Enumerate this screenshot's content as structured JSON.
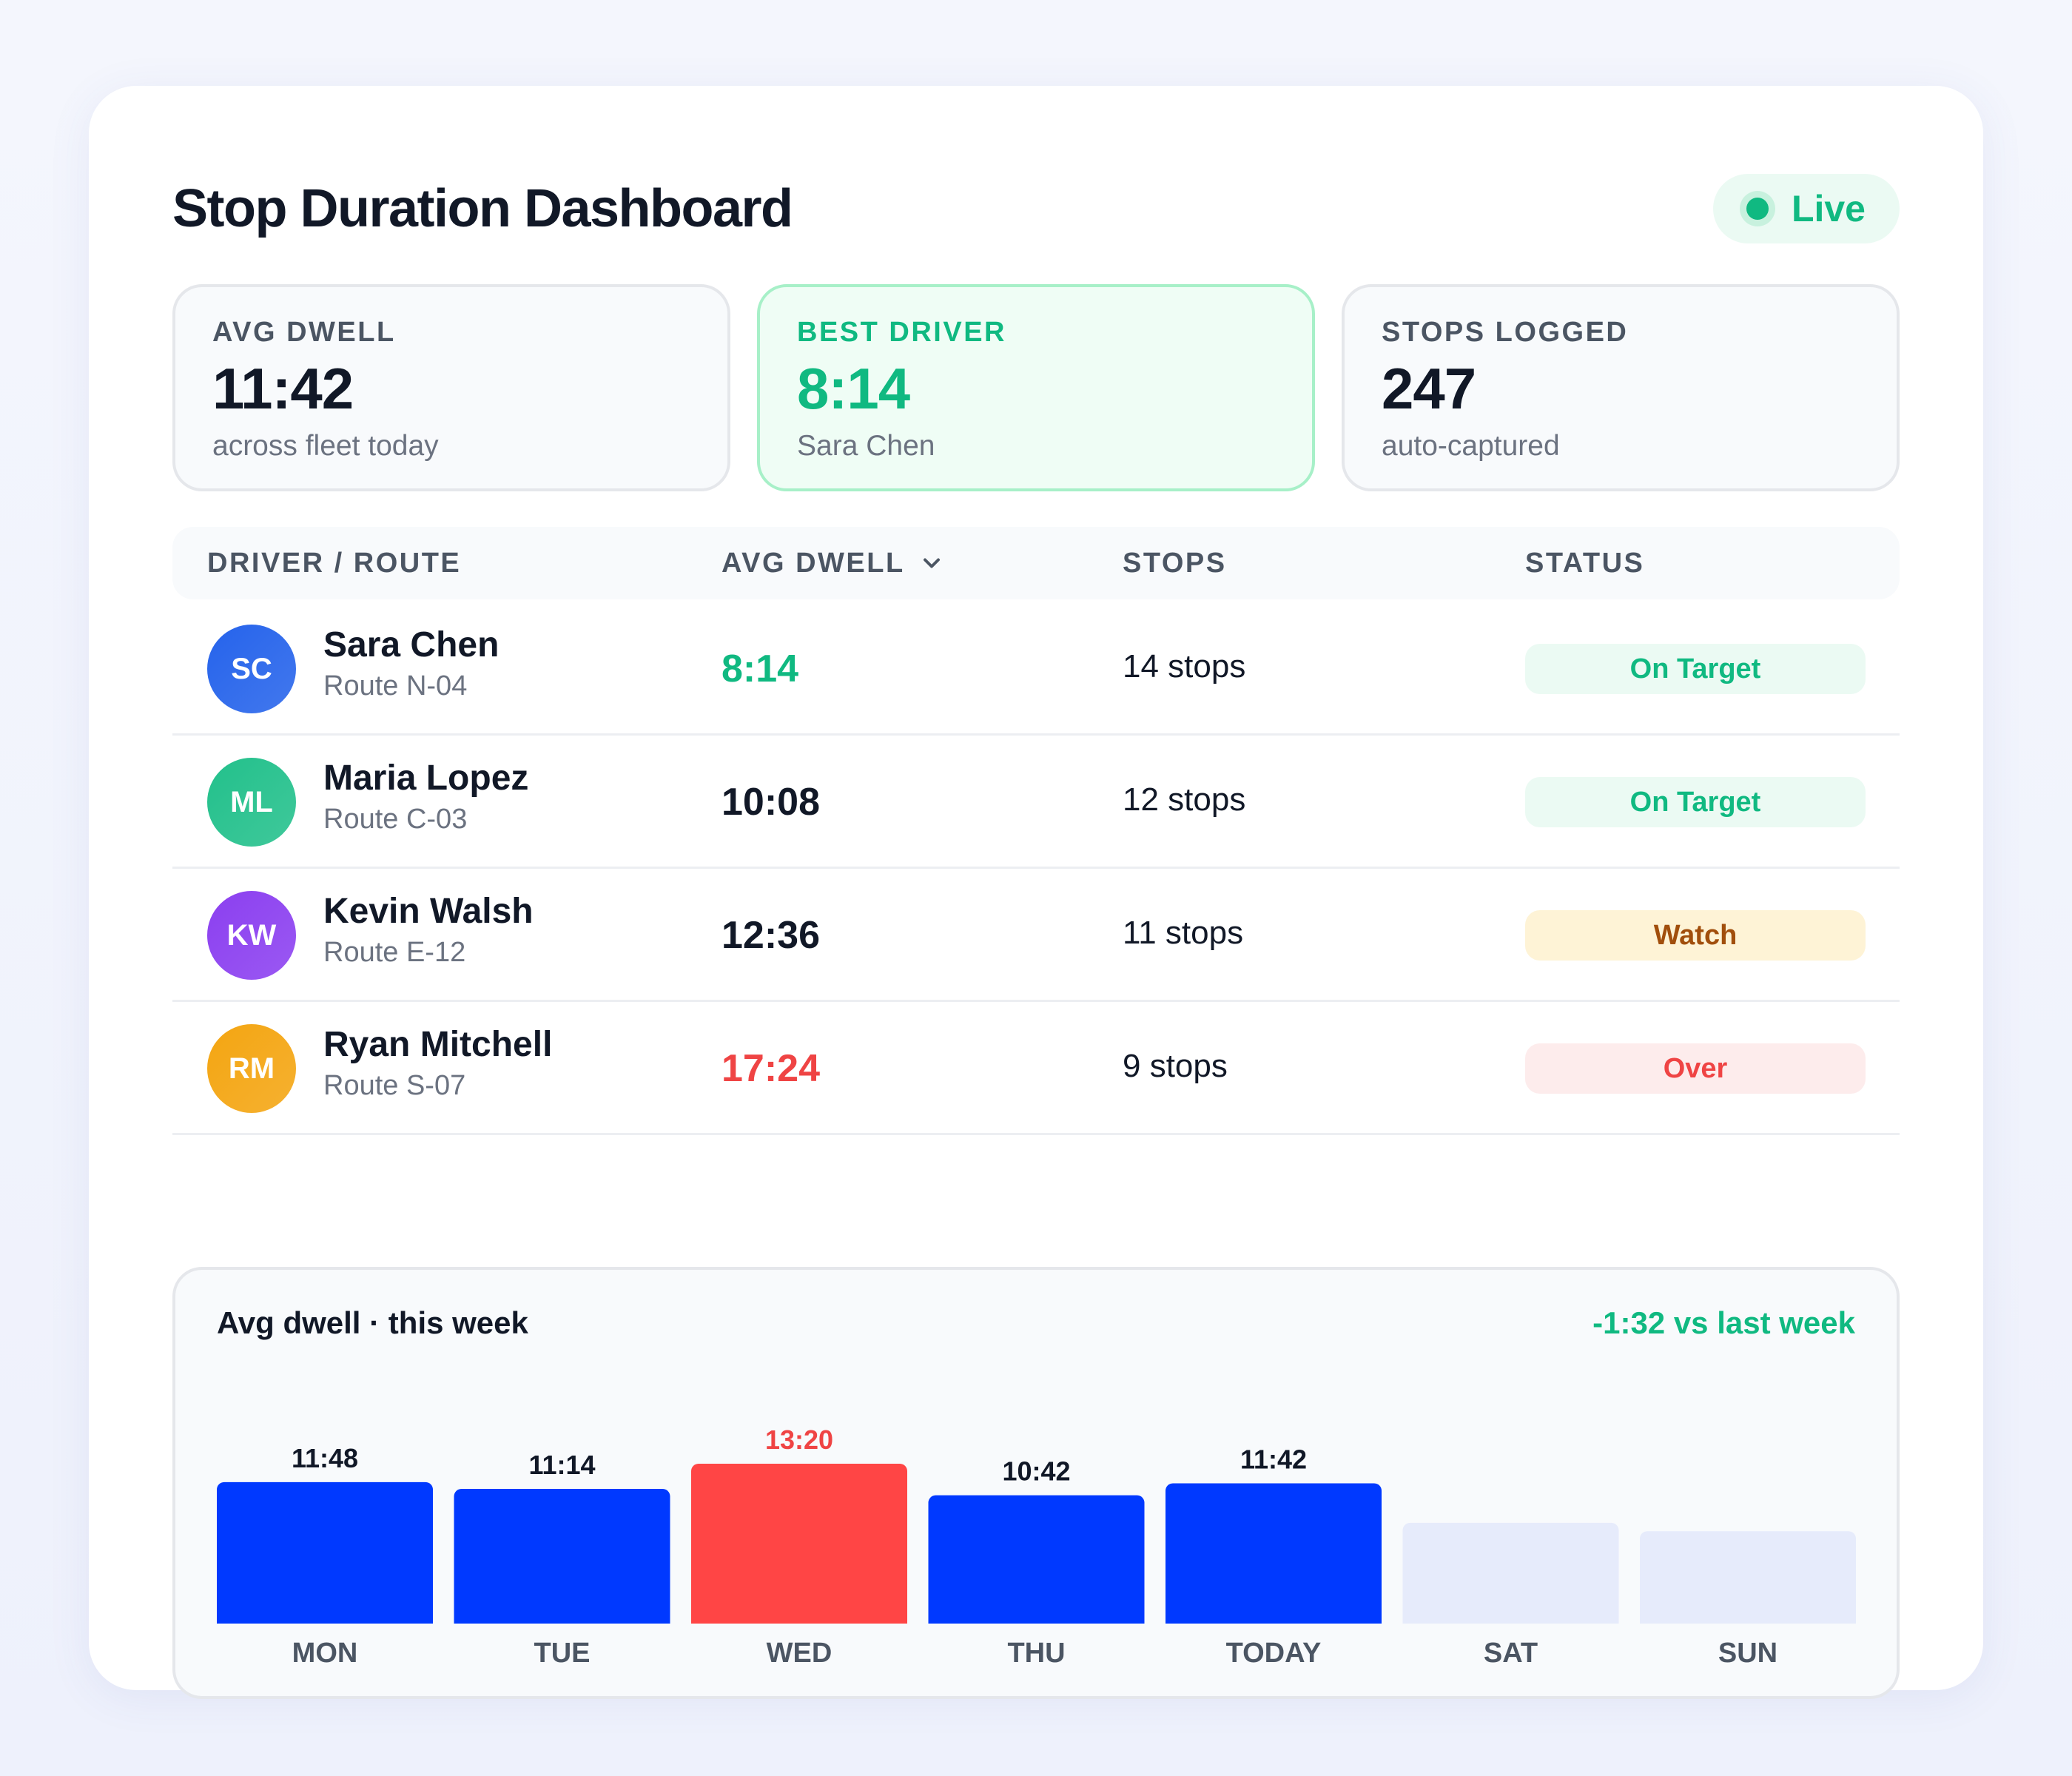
{
  "header": {
    "title": "Stop Duration Dashboard",
    "live_label": "Live"
  },
  "kpis": [
    {
      "label": "AVG DWELL",
      "value": "11:42",
      "sub": "across fleet today"
    },
    {
      "label": "BEST DRIVER",
      "value": "8:14",
      "sub": "Sara Chen"
    },
    {
      "label": "STOPS LOGGED",
      "value": "247",
      "sub": "auto-captured"
    }
  ],
  "table": {
    "headers": {
      "driver": "DRIVER / ROUTE",
      "dwell": "AVG DWELL",
      "stops": "STOPS",
      "status": "STATUS"
    },
    "rows": [
      {
        "initials": "SC",
        "name": "Sara Chen",
        "route": "Route N-04",
        "dwell": "8:14",
        "stops": "14 stops",
        "status": "On Target",
        "avatar_color": "#2563eb",
        "dwell_color": "#10b981",
        "badge_bg": "#ebfaf3",
        "badge_fg": "#10b981"
      },
      {
        "initials": "ML",
        "name": "Maria Lopez",
        "route": "Route C-03",
        "dwell": "10:08",
        "stops": "12 stops",
        "status": "On Target",
        "avatar_color": "#22c08b",
        "dwell_color": "#111827",
        "badge_bg": "#ebfaf3",
        "badge_fg": "#10b981"
      },
      {
        "initials": "KW",
        "name": "Kevin Walsh",
        "route": "Route E-12",
        "dwell": "12:36",
        "stops": "11 stops",
        "status": "Watch",
        "avatar_color": "#8b3ff0",
        "dwell_color": "#111827",
        "badge_bg": "#fef3d6",
        "badge_fg": "#a14e0c"
      },
      {
        "initials": "RM",
        "name": "Ryan Mitchell",
        "route": "Route S-07",
        "dwell": "17:24",
        "stops": "9 stops",
        "status": "Over",
        "avatar_color": "#f4a511",
        "dwell_color": "#ef4444",
        "badge_bg": "#fdecec",
        "badge_fg": "#ef4444"
      }
    ]
  },
  "weekly": {
    "title": "Avg dwell · this week",
    "delta": "-1:32 vs last week"
  },
  "chart_data": {
    "type": "bar",
    "categories": [
      "MON",
      "TUE",
      "WED",
      "THU",
      "TODAY",
      "SAT",
      "SUN"
    ],
    "values_minutes": [
      11.8,
      11.233,
      13.333,
      10.7,
      11.7,
      8.4,
      7.7
    ],
    "labels": [
      "11:48",
      "11:14",
      "13:20",
      "10:42",
      "11:42",
      "",
      ""
    ],
    "bar_colors": [
      "#0039ff",
      "#0039ff",
      "#ff4545",
      "#0039ff",
      "#0039ff",
      "#e6ebfb",
      "#e6ebfb"
    ],
    "label_colors": [
      "#111827",
      "#111827",
      "#ef4444",
      "#111827",
      "#111827",
      "#111827",
      "#111827"
    ],
    "ymax": 13.333
  }
}
